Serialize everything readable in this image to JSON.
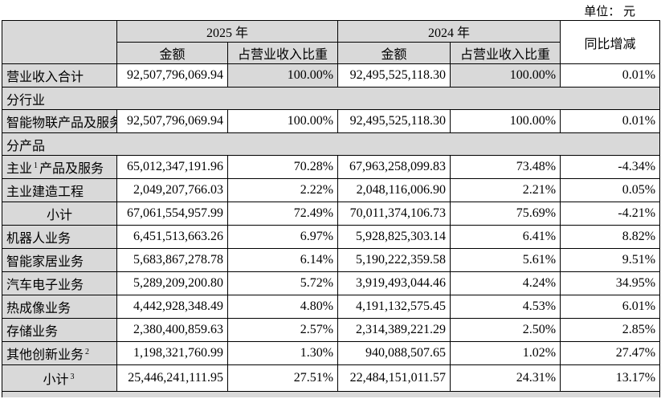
{
  "page": {
    "unit_label": "单位： 元"
  },
  "colors": {
    "shade": "#d9d9d9",
    "border": "#000000",
    "background": "#ffffff"
  },
  "table": {
    "header": {
      "year_2025": "2025 年",
      "year_2024": "2024 年",
      "yoy": "同比增减",
      "amount": "金额",
      "share": "占营业收入比重"
    },
    "rows": [
      {
        "kind": "data",
        "label": "营业收入合计",
        "align": "left",
        "cells": [
          "92,507,796,069.94",
          "100.00%",
          "92,495,525,118.30",
          "100.00%",
          "0.01%"
        ],
        "shaded_cells": [
          1,
          3
        ]
      },
      {
        "kind": "section",
        "label": "分行业"
      },
      {
        "kind": "data",
        "label": "智能物联产品及服务",
        "align": "left",
        "cells": [
          "92,507,796,069.94",
          "100.00%",
          "92,495,525,118.30",
          "100.00%",
          "0.01%"
        ]
      },
      {
        "kind": "section",
        "label": "分产品"
      },
      {
        "kind": "data",
        "label": "主业",
        "sup": "1",
        "label_suffix": "产品及服务",
        "align": "left",
        "cells": [
          "65,012,347,191.96",
          "70.28%",
          "67,963,258,099.83",
          "73.48%",
          "-4.34%"
        ]
      },
      {
        "kind": "data",
        "label": "主业建造工程",
        "align": "left",
        "cells": [
          "2,049,207,766.03",
          "2.22%",
          "2,048,116,006.90",
          "2.21%",
          "0.05%"
        ]
      },
      {
        "kind": "data",
        "label": "小计",
        "align": "center",
        "cells": [
          "67,061,554,957.99",
          "72.49%",
          "70,011,374,106.73",
          "75.69%",
          "-4.21%"
        ]
      },
      {
        "kind": "data",
        "label": "机器人业务",
        "align": "left",
        "cells": [
          "6,451,513,663.26",
          "6.97%",
          "5,928,825,303.14",
          "6.41%",
          "8.82%"
        ]
      },
      {
        "kind": "data",
        "label": "智能家居业务",
        "align": "left",
        "cells": [
          "5,683,867,278.78",
          "6.14%",
          "5,190,222,359.58",
          "5.61%",
          "9.51%"
        ]
      },
      {
        "kind": "data",
        "label": "汽车电子业务",
        "align": "left",
        "cells": [
          "5,289,209,200.80",
          "5.72%",
          "3,919,493,044.46",
          "4.24%",
          "34.95%"
        ]
      },
      {
        "kind": "data",
        "label": "热成像业务",
        "align": "left",
        "cells": [
          "4,442,928,348.49",
          "4.80%",
          "4,191,132,575.45",
          "4.53%",
          "6.01%"
        ]
      },
      {
        "kind": "data",
        "label": "存储业务",
        "align": "left",
        "cells": [
          "2,380,400,859.63",
          "2.57%",
          "2,314,389,221.29",
          "2.50%",
          "2.85%"
        ]
      },
      {
        "kind": "data",
        "label": "其他创新业务",
        "sup": "2",
        "label_suffix": "",
        "align": "left",
        "cells": [
          "1,198,321,760.99",
          "1.30%",
          "940,088,507.65",
          "1.02%",
          "27.47%"
        ]
      },
      {
        "kind": "data",
        "label": "小计",
        "sup": "3",
        "label_suffix": "",
        "align": "center",
        "tall": true,
        "cells": [
          "25,446,241,111.95",
          "27.51%",
          "22,484,151,011.57",
          "24.31%",
          "13.17%"
        ]
      },
      {
        "kind": "partial"
      }
    ]
  }
}
